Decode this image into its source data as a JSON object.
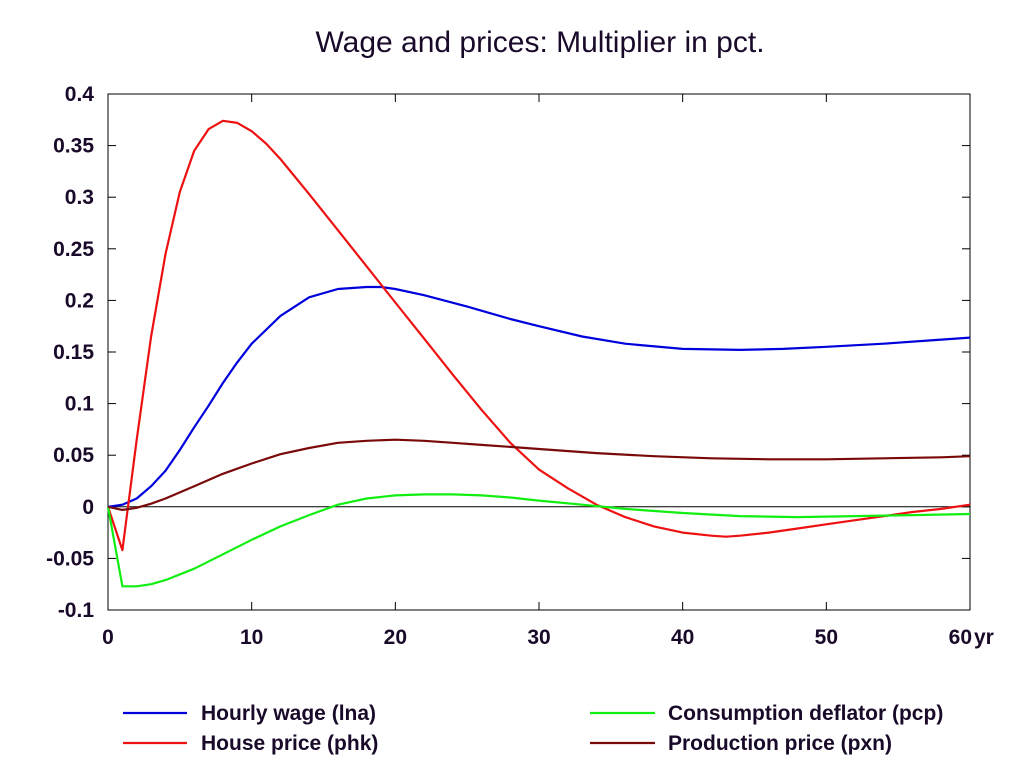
{
  "chart_data": {
    "type": "line",
    "title": "Wage and prices: Multiplier in pct.",
    "x_unit_label": "yr",
    "xlim": [
      0,
      60
    ],
    "ylim": [
      -0.1,
      0.4
    ],
    "x_ticks": [
      0,
      10,
      20,
      30,
      40,
      50,
      60
    ],
    "x_tick_labels": [
      "0",
      "10",
      "20",
      "30",
      "40",
      "50",
      "60"
    ],
    "y_ticks": [
      0.4,
      0.35,
      0.3,
      0.25,
      0.2,
      0.15,
      0.1,
      0.05,
      0,
      -0.05,
      -0.1
    ],
    "y_tick_labels": [
      "0.4",
      "0.35",
      "0.3",
      "0.25",
      "0.2",
      "0.15",
      "0.1",
      "0.05",
      "0",
      "-0.05",
      "-0.1"
    ],
    "grid": false,
    "zero_line": true,
    "legend_placement": "bottom",
    "series": [
      {
        "name": "Hourly wage (lna)",
        "color": "#0000dd",
        "x": [
          0,
          1,
          2,
          3,
          4,
          5,
          6,
          7,
          8,
          9,
          10,
          12,
          14,
          16,
          18,
          19,
          20,
          22,
          25,
          28,
          30,
          33,
          36,
          40,
          44,
          47,
          50,
          54,
          57,
          60
        ],
        "y": [
          0,
          0.002,
          0.008,
          0.02,
          0.035,
          0.055,
          0.077,
          0.098,
          0.12,
          0.14,
          0.158,
          0.185,
          0.203,
          0.211,
          0.213,
          0.213,
          0.211,
          0.205,
          0.194,
          0.182,
          0.175,
          0.165,
          0.158,
          0.153,
          0.152,
          0.153,
          0.155,
          0.158,
          0.161,
          0.164
        ]
      },
      {
        "name": "House price (phk)",
        "color": "#ee1111",
        "x": [
          0,
          1,
          2,
          3,
          4,
          5,
          6,
          7,
          8,
          9,
          10,
          11,
          12,
          14,
          16,
          18,
          20,
          22,
          24,
          26,
          28,
          30,
          32,
          34,
          36,
          38,
          40,
          42,
          43,
          44,
          46,
          48,
          50,
          52,
          54,
          56,
          58,
          60
        ],
        "y": [
          0,
          -0.042,
          0.065,
          0.165,
          0.245,
          0.305,
          0.345,
          0.366,
          0.374,
          0.372,
          0.364,
          0.352,
          0.337,
          0.303,
          0.268,
          0.233,
          0.198,
          0.163,
          0.128,
          0.094,
          0.062,
          0.036,
          0.018,
          0.002,
          -0.01,
          -0.019,
          -0.025,
          -0.028,
          -0.029,
          -0.028,
          -0.025,
          -0.021,
          -0.017,
          -0.013,
          -0.009,
          -0.005,
          -0.002,
          0.002
        ]
      },
      {
        "name": "Consumption deflator (pcp)",
        "color": "#11ee11",
        "x": [
          0,
          1,
          2,
          3,
          4,
          6,
          8,
          10,
          12,
          14,
          16,
          18,
          20,
          22,
          24,
          26,
          28,
          30,
          33,
          36,
          40,
          44,
          48,
          52,
          56,
          60
        ],
        "y": [
          0,
          -0.077,
          -0.077,
          -0.075,
          -0.071,
          -0.06,
          -0.046,
          -0.032,
          -0.019,
          -0.008,
          0.002,
          0.008,
          0.011,
          0.012,
          0.012,
          0.011,
          0.009,
          0.006,
          0.002,
          -0.002,
          -0.006,
          -0.009,
          -0.01,
          -0.009,
          -0.008,
          -0.007
        ]
      },
      {
        "name": "Production price (pxn)",
        "color": "#7a0a0a",
        "x": [
          0,
          1,
          2,
          3,
          4,
          6,
          8,
          10,
          12,
          14,
          16,
          18,
          20,
          22,
          24,
          26,
          28,
          30,
          34,
          38,
          42,
          46,
          50,
          54,
          58,
          60
        ],
        "y": [
          0,
          -0.003,
          -0.001,
          0.003,
          0.008,
          0.02,
          0.032,
          0.042,
          0.051,
          0.057,
          0.062,
          0.064,
          0.065,
          0.064,
          0.062,
          0.06,
          0.058,
          0.056,
          0.052,
          0.049,
          0.047,
          0.046,
          0.046,
          0.047,
          0.048,
          0.049
        ]
      }
    ]
  }
}
